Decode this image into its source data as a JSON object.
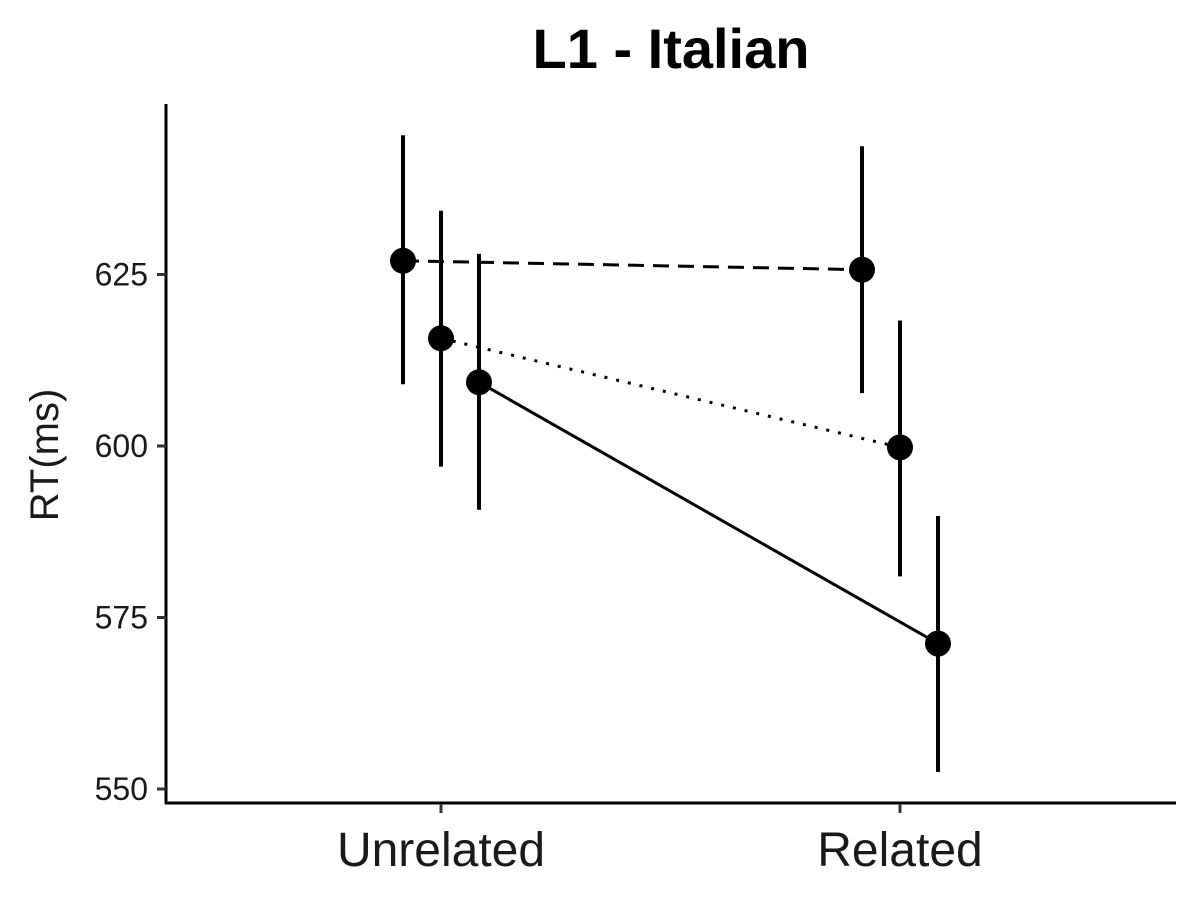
{
  "chart_data": {
    "type": "scatter",
    "title": "L1 - Italian",
    "xlabel": "",
    "ylabel": "RT(ms)",
    "categories": [
      "Unrelated",
      "Related"
    ],
    "y_ticks": [
      550,
      575,
      600,
      625
    ],
    "ylim": [
      549,
      650
    ],
    "grid": false,
    "legend": "none",
    "series": [
      {
        "line_style": "dashed",
        "offset": -1,
        "values": [
          627,
          625.7
        ],
        "error_low": [
          609,
          607.7
        ],
        "error_high": [
          645.3,
          643.7
        ]
      },
      {
        "line_style": "dotted",
        "offset": 0,
        "values": [
          615.7,
          599.8
        ],
        "error_low": [
          597,
          581
        ],
        "error_high": [
          634.3,
          618.3
        ]
      },
      {
        "line_style": "solid",
        "offset": 1,
        "values": [
          609.3,
          571.2
        ],
        "error_low": [
          590.7,
          552.5
        ],
        "error_high": [
          628,
          589.8
        ]
      }
    ]
  }
}
